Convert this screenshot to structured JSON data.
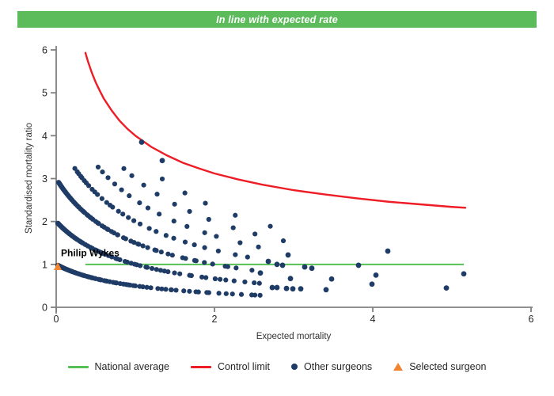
{
  "banner": {
    "text": "In line with expected rate",
    "bg_color": "#5cbc5c",
    "text_color": "#ffffff"
  },
  "chart_data": {
    "type": "scatter",
    "xlabel": "Expected mortality",
    "ylabel": "Standardised mortality ratio",
    "xlim": [
      0,
      6
    ],
    "ylim": [
      0,
      6
    ],
    "x_ticks": [
      0,
      2,
      4,
      6
    ],
    "y_ticks": [
      0,
      1,
      2,
      3,
      4,
      5,
      6
    ],
    "grid": false,
    "dot_color": "#1f3c67",
    "axis_color": "#808080",
    "tick_label_color": "#262626",
    "national_average": {
      "y": 1,
      "x_start": 0.37,
      "x_end": 5.15,
      "color": "#55c055"
    },
    "control_limit": {
      "color": "#ee1c25",
      "formula": "smr = 1 + 3/sqrt(expected)",
      "points": [
        [
          0.37,
          5.93
        ],
        [
          0.4,
          5.74
        ],
        [
          0.45,
          5.47
        ],
        [
          0.5,
          5.24
        ],
        [
          0.55,
          5.05
        ],
        [
          0.6,
          4.87
        ],
        [
          0.7,
          4.59
        ],
        [
          0.8,
          4.35
        ],
        [
          0.9,
          4.16
        ],
        [
          1.0,
          4.0
        ],
        [
          1.2,
          3.74
        ],
        [
          1.4,
          3.54
        ],
        [
          1.6,
          3.37
        ],
        [
          1.8,
          3.24
        ],
        [
          2.0,
          3.12
        ],
        [
          2.3,
          2.98
        ],
        [
          2.6,
          2.86
        ],
        [
          3.0,
          2.73
        ],
        [
          3.4,
          2.63
        ],
        [
          3.8,
          2.54
        ],
        [
          4.2,
          2.46
        ],
        [
          4.6,
          2.4
        ],
        [
          5.0,
          2.34
        ],
        [
          5.17,
          2.32
        ]
      ]
    },
    "other_surgeons_bands": {
      "formula": "smr = deaths/(1+expected), points sampled geometrically in x",
      "bands": [
        {
          "deaths": 1,
          "x_start": 0.02,
          "x_end": 2.62,
          "n": 120
        },
        {
          "deaths": 2,
          "x_start": 0.02,
          "x_end": 2.55,
          "n": 112
        },
        {
          "deaths": 3,
          "x_start": 0.03,
          "x_end": 2.42,
          "n": 92
        },
        {
          "deaths": 4,
          "x_start": 0.24,
          "x_end": 2.4,
          "n": 30
        },
        {
          "deaths": 5,
          "x_start": 0.52,
          "x_end": 2.6,
          "n": 15
        },
        {
          "deaths": 6,
          "x_start": 0.85,
          "x_end": 2.9,
          "n": 10
        },
        {
          "deaths": 7,
          "x_start": 1.35,
          "x_end": 2.74,
          "n": 5
        }
      ]
    },
    "other_surgeons_points": [
      [
        1.08,
        3.85
      ],
      [
        1.34,
        3.42
      ],
      [
        2.93,
        1.22
      ],
      [
        2.68,
        1.07
      ],
      [
        2.79,
        1.0
      ],
      [
        2.86,
        0.98
      ],
      [
        3.14,
        0.94
      ],
      [
        3.23,
        0.91
      ],
      [
        2.58,
        0.8
      ],
      [
        2.96,
        0.67
      ],
      [
        3.48,
        0.66
      ],
      [
        2.73,
        0.46
      ],
      [
        2.79,
        0.46
      ],
      [
        2.91,
        0.44
      ],
      [
        2.99,
        0.43
      ],
      [
        3.09,
        0.43
      ],
      [
        3.41,
        0.41
      ],
      [
        3.82,
        0.98
      ],
      [
        4.19,
        1.31
      ],
      [
        4.04,
        0.75
      ],
      [
        3.99,
        0.54
      ],
      [
        4.93,
        0.45
      ],
      [
        5.15,
        0.78
      ]
    ],
    "selected_surgeon": {
      "name": "Philip Wykes",
      "x": 0.02,
      "y": 0.95,
      "color": "#f08430"
    }
  },
  "legend": {
    "items": [
      {
        "id": "national-average",
        "label": "National average",
        "type": "line",
        "color": "#55c055"
      },
      {
        "id": "control-limit",
        "label": "Control limit",
        "type": "line",
        "color": "#ee1c25"
      },
      {
        "id": "other-surgeons",
        "label": "Other surgeons",
        "type": "dot",
        "color": "#1f3c67"
      },
      {
        "id": "selected-surgeon",
        "label": "Selected surgeon",
        "type": "triangle",
        "color": "#f08430"
      }
    ]
  }
}
